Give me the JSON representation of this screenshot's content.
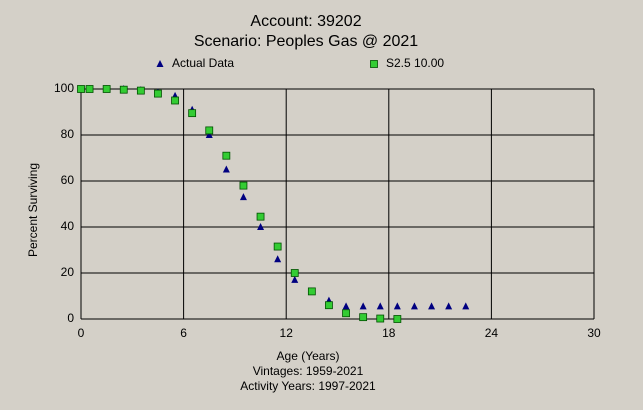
{
  "chart_data": {
    "type": "scatter",
    "title": "Account: 39202",
    "subtitle": "Scenario: Peoples Gas @ 2021",
    "x_label": "Age (Years)",
    "y_label": "Percent Surviving",
    "footnotes": [
      "Vintages: 1959-2021",
      "Activity Years: 1997-2021"
    ],
    "x": [
      0,
      0.5,
      1.5,
      2.5,
      3.5,
      4.5,
      5.5,
      6.5,
      7.5,
      8.5,
      9.5,
      10.5,
      11.5,
      12.5,
      13.5,
      14.5,
      15.5,
      16.5,
      17.5,
      18.5,
      19.5,
      20.5,
      21.5,
      22.5
    ],
    "series": [
      {
        "name": "Actual Data",
        "color": "#000080",
        "marker": "triangle",
        "values": [
          100,
          100,
          100,
          100,
          99.5,
          98.5,
          97,
          91,
          80,
          65,
          53,
          40,
          26,
          17,
          12,
          8,
          5.5,
          5.5,
          5.5,
          5.5,
          5.5,
          5.5,
          5.5,
          5.5
        ]
      },
      {
        "name": "S2.5 10.00",
        "color": "#33cc33",
        "marker": "square",
        "values": [
          100,
          100,
          100,
          99.7,
          99.3,
          98,
          95,
          89.5,
          82,
          71,
          58,
          44.5,
          31.5,
          20,
          12,
          6,
          2.5,
          0.8,
          0.2,
          0,
          null,
          null,
          null,
          null
        ]
      }
    ],
    "xlim": [
      0,
      30
    ],
    "xticks": [
      0,
      6,
      12,
      18,
      24,
      30
    ],
    "ylim": [
      0,
      100
    ],
    "yticks": [
      0,
      20,
      40,
      60,
      80,
      100
    ],
    "grid": true
  }
}
